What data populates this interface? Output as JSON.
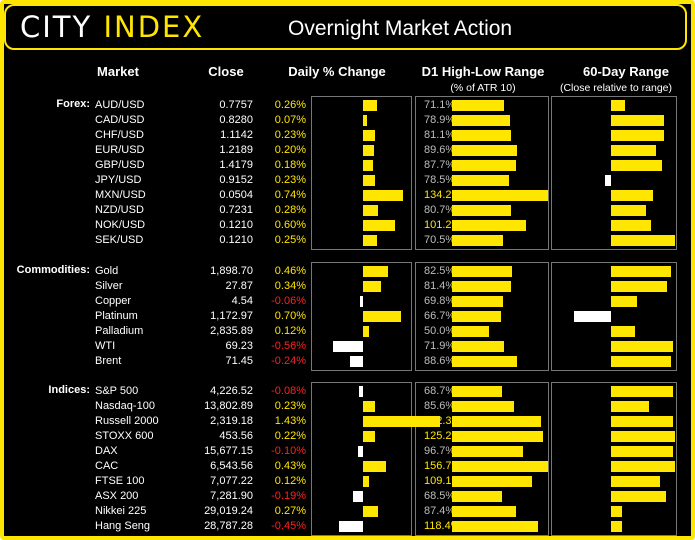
{
  "brand": {
    "word1": "CITY",
    "word2": "INDEX"
  },
  "title": "Overnight Market Action",
  "columns": {
    "market": "Market",
    "close": "Close",
    "daily_change": "Daily % Change",
    "d1_range": "D1 High-Low Range",
    "d1_range_sub": "(% of ATR 10)",
    "range60": "60-Day Range",
    "range60_sub": "(Close relative to range)"
  },
  "colors": {
    "accent": "#ffe600",
    "negative": "#ff2020",
    "background": "#000000"
  },
  "groups": [
    {
      "label": "Forex:",
      "rows": [
        {
          "market": "AUD/USD",
          "close": "0.7757",
          "change": "0.26%",
          "change_value": 0.26,
          "atr": "71.1%",
          "atr_value": 71.1,
          "range60": 0.22
        },
        {
          "market": "CAD/USD",
          "close": "0.8280",
          "change": "0.07%",
          "change_value": 0.07,
          "atr": "78.9%",
          "atr_value": 78.9,
          "range60": 0.83
        },
        {
          "market": "CHF/USD",
          "close": "1.1142",
          "change": "0.23%",
          "change_value": 0.23,
          "atr": "81.1%",
          "atr_value": 81.1,
          "range60": 0.83
        },
        {
          "market": "EUR/USD",
          "close": "1.2189",
          "change": "0.20%",
          "change_value": 0.2,
          "atr": "89.6%",
          "atr_value": 89.6,
          "range60": 0.71
        },
        {
          "market": "GBP/USD",
          "close": "1.4179",
          "change": "0.18%",
          "change_value": 0.18,
          "atr": "87.7%",
          "atr_value": 87.7,
          "range60": 0.8
        },
        {
          "market": "JPY/USD",
          "close": "0.9152",
          "change": "0.23%",
          "change_value": 0.23,
          "atr": "78.5%",
          "atr_value": 78.5,
          "range60": -0.09
        },
        {
          "market": "MXN/USD",
          "close": "0.0504",
          "change": "0.74%",
          "change_value": 0.74,
          "atr": "134.2%",
          "atr_value": 134.2,
          "range60": 0.66
        },
        {
          "market": "NZD/USD",
          "close": "0.7231",
          "change": "0.28%",
          "change_value": 0.28,
          "atr": "80.7%",
          "atr_value": 80.7,
          "range60": 0.54
        },
        {
          "market": "NOK/USD",
          "close": "0.1210",
          "change": "0.60%",
          "change_value": 0.6,
          "atr": "101.2%",
          "atr_value": 101.2,
          "range60": 0.62
        },
        {
          "market": "SEK/USD",
          "close": "0.1210",
          "change": "0.25%",
          "change_value": 0.25,
          "atr": "70.5%",
          "atr_value": 70.5,
          "range60": 1.0
        }
      ]
    },
    {
      "label": "Commodities:",
      "rows": [
        {
          "market": "Gold",
          "close": "1,898.70",
          "change": "0.46%",
          "change_value": 0.46,
          "atr": "82.5%",
          "atr_value": 82.5,
          "range60": 0.94
        },
        {
          "market": "Silver",
          "close": "27.87",
          "change": "0.34%",
          "change_value": 0.34,
          "atr": "81.4%",
          "atr_value": 81.4,
          "range60": 0.87
        },
        {
          "market": "Copper",
          "close": "4.54",
          "change": "-0.06%",
          "change_value": -0.06,
          "atr": "69.8%",
          "atr_value": 69.8,
          "range60": 0.4
        },
        {
          "market": "Platinum",
          "close": "1,172.97",
          "change": "0.70%",
          "change_value": 0.7,
          "atr": "66.7%",
          "atr_value": 66.7,
          "range60": -0.58
        },
        {
          "market": "Palladium",
          "close": "2,835.89",
          "change": "0.12%",
          "change_value": 0.12,
          "atr": "50.0%",
          "atr_value": 50.0,
          "range60": 0.37
        },
        {
          "market": "WTI",
          "close": "69.23",
          "change": "-0.56%",
          "change_value": -0.56,
          "atr": "71.9%",
          "atr_value": 71.9,
          "range60": 0.97
        },
        {
          "market": "Brent",
          "close": "71.45",
          "change": "-0.24%",
          "change_value": -0.24,
          "atr": "88.6%",
          "atr_value": 88.6,
          "range60": 0.94
        }
      ]
    },
    {
      "label": "Indices:",
      "rows": [
        {
          "market": "S&P 500",
          "close": "4,226.52",
          "change": "-0.08%",
          "change_value": -0.08,
          "atr": "68.7%",
          "atr_value": 68.7,
          "range60": 0.97
        },
        {
          "market": "Nasdaq-100",
          "close": "13,802.89",
          "change": "0.23%",
          "change_value": 0.23,
          "atr": "85.6%",
          "atr_value": 85.6,
          "range60": 0.59
        },
        {
          "market": "Russell 2000",
          "close": "2,319.18",
          "change": "1.43%",
          "change_value": 1.43,
          "atr": "122.3%",
          "atr_value": 122.3,
          "range60": 0.97
        },
        {
          "market": "STOXX 600",
          "close": "453.56",
          "change": "0.22%",
          "change_value": 0.22,
          "atr": "125.2%",
          "atr_value": 125.2,
          "range60": 1.0
        },
        {
          "market": "DAX",
          "close": "15,677.15",
          "change": "-0.10%",
          "change_value": -0.1,
          "atr": "96.7%",
          "atr_value": 96.7,
          "range60": 0.97
        },
        {
          "market": "CAC",
          "close": "6,543.56",
          "change": "0.43%",
          "change_value": 0.43,
          "atr": "156.7%",
          "atr_value": 156.7,
          "range60": 1.0
        },
        {
          "market": "FTSE 100",
          "close": "7,077.22",
          "change": "0.12%",
          "change_value": 0.12,
          "atr": "109.1%",
          "atr_value": 109.1,
          "range60": 0.77
        },
        {
          "market": "ASX 200",
          "close": "7,281.90",
          "change": "-0.19%",
          "change_value": -0.19,
          "atr": "68.5%",
          "atr_value": 68.5,
          "range60": 0.86
        },
        {
          "market": "Nikkei 225",
          "close": "29,019.24",
          "change": "0.27%",
          "change_value": 0.27,
          "atr": "87.4%",
          "atr_value": 87.4,
          "range60": 0.17
        },
        {
          "market": "Hang Seng",
          "close": "28,787.28",
          "change": "-0.45%",
          "change_value": -0.45,
          "atr": "118.4%",
          "atr_value": 118.4,
          "range60": 0.17
        }
      ]
    }
  ]
}
